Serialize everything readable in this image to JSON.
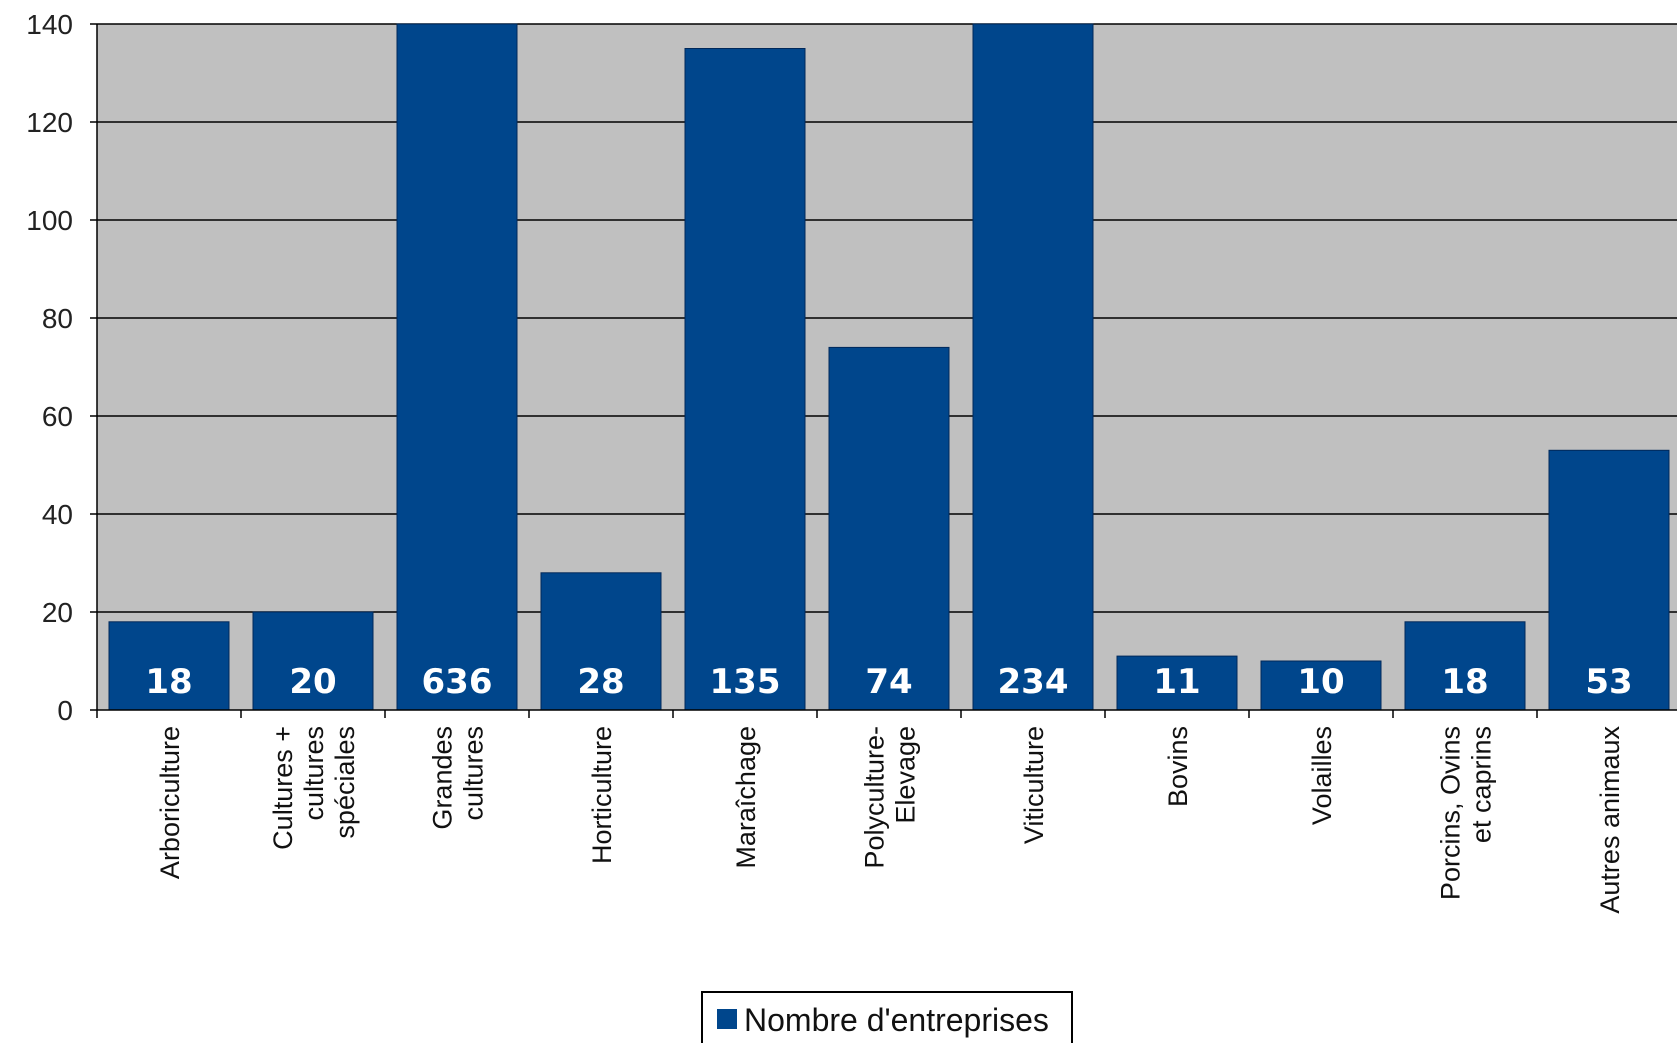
{
  "chart_data": {
    "type": "bar",
    "categories": [
      [
        "Arboriculture"
      ],
      [
        "Cultures +",
        "cultures",
        "spéciales"
      ],
      [
        "Grandes",
        "cultures"
      ],
      [
        "Horticulture"
      ],
      [
        "Maraîchage"
      ],
      [
        "Polyculture-",
        "Elevage"
      ],
      [
        "Viticulture"
      ],
      [
        "Bovins"
      ],
      [
        "Volailles"
      ],
      [
        "Porcins, Ovins",
        "et caprins"
      ],
      [
        "Autres animaux"
      ]
    ],
    "series": [
      {
        "name": "Nombre d'entreprises",
        "values": [
          18,
          20,
          636,
          28,
          135,
          74,
          234,
          11,
          10,
          18,
          53
        ],
        "data_labels": [
          "18",
          "20",
          "636",
          "28",
          "135",
          "74",
          "234",
          "11",
          "10",
          "18",
          "53"
        ]
      }
    ],
    "ylim": [
      0,
      140
    ],
    "yticks": [
      "0",
      "20",
      "40",
      "60",
      "80",
      "100",
      "120",
      "140"
    ],
    "grid": true,
    "legend": "bottom-center",
    "colors": {
      "bar": "#00468C",
      "plot_background": "#C0C0C0",
      "gridline": "#000000"
    }
  }
}
